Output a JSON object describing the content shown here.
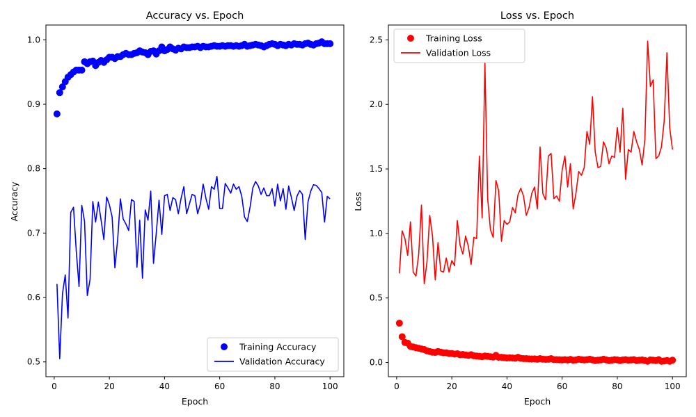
{
  "chart_data": [
    {
      "type": "line",
      "title": "Accuracy vs. Epoch",
      "xlabel": "Epoch",
      "ylabel": "Accuracy",
      "xlim": [
        -3,
        105
      ],
      "ylim": [
        0.477,
        1.023
      ],
      "xticks": [
        0,
        20,
        40,
        60,
        80,
        100
      ],
      "xtick_labels": [
        "0",
        "20",
        "40",
        "60",
        "80",
        "100"
      ],
      "yticks": [
        0.5,
        0.6,
        0.7,
        0.8,
        0.9,
        1.0
      ],
      "ytick_labels": [
        "0.5",
        "0.6",
        "0.7",
        "0.8",
        "0.9",
        "1.0"
      ],
      "grid": false,
      "legend_position": "bottom-right",
      "series": [
        {
          "name": "Training Accuracy",
          "style": "markers",
          "color": "#0000ff",
          "x": [
            1,
            2,
            3,
            4,
            5,
            6,
            7,
            8,
            9,
            10,
            11,
            12,
            13,
            14,
            15,
            16,
            17,
            18,
            19,
            20,
            21,
            22,
            23,
            24,
            25,
            26,
            27,
            28,
            29,
            30,
            31,
            32,
            33,
            34,
            35,
            36,
            37,
            38,
            39,
            40,
            41,
            42,
            43,
            44,
            45,
            46,
            47,
            48,
            49,
            50,
            51,
            52,
            53,
            54,
            55,
            56,
            57,
            58,
            59,
            60,
            61,
            62,
            63,
            64,
            65,
            66,
            67,
            68,
            69,
            70,
            71,
            72,
            73,
            74,
            75,
            76,
            77,
            78,
            79,
            80,
            81,
            82,
            83,
            84,
            85,
            86,
            87,
            88,
            89,
            90,
            91,
            92,
            93,
            94,
            95,
            96,
            97,
            98,
            99,
            100
          ],
          "y": [
            0.885,
            0.918,
            0.927,
            0.935,
            0.942,
            0.946,
            0.95,
            0.953,
            0.953,
            0.953,
            0.966,
            0.963,
            0.966,
            0.967,
            0.96,
            0.965,
            0.968,
            0.965,
            0.969,
            0.973,
            0.973,
            0.971,
            0.974,
            0.974,
            0.977,
            0.979,
            0.977,
            0.977,
            0.979,
            0.98,
            0.983,
            0.981,
            0.98,
            0.977,
            0.982,
            0.983,
            0.978,
            0.983,
            0.989,
            0.983,
            0.985,
            0.989,
            0.986,
            0.984,
            0.987,
            0.986,
            0.989,
            0.988,
            0.988,
            0.989,
            0.989,
            0.99,
            0.988,
            0.99,
            0.989,
            0.989,
            0.99,
            0.991,
            0.99,
            0.99,
            0.991,
            0.99,
            0.991,
            0.991,
            0.99,
            0.991,
            0.99,
            0.991,
            0.993,
            0.99,
            0.991,
            0.992,
            0.993,
            0.992,
            0.991,
            0.989,
            0.991,
            0.993,
            0.994,
            0.993,
            0.991,
            0.993,
            0.992,
            0.991,
            0.993,
            0.992,
            0.994,
            0.993,
            0.993,
            0.992,
            0.994,
            0.995,
            0.993,
            0.992,
            0.994,
            0.995,
            0.997,
            0.994,
            0.994,
            0.994
          ]
        },
        {
          "name": "Validation Accuracy",
          "style": "line",
          "color": "#0000ff",
          "x": [
            1,
            2,
            3,
            4,
            5,
            6,
            7,
            8,
            9,
            10,
            11,
            12,
            13,
            14,
            15,
            16,
            17,
            18,
            19,
            20,
            21,
            22,
            23,
            24,
            25,
            26,
            27,
            28,
            29,
            30,
            31,
            32,
            33,
            34,
            35,
            36,
            37,
            38,
            39,
            40,
            41,
            42,
            43,
            44,
            45,
            46,
            47,
            48,
            49,
            50,
            51,
            52,
            53,
            54,
            55,
            56,
            57,
            58,
            59,
            60,
            61,
            62,
            63,
            64,
            65,
            66,
            67,
            68,
            69,
            70,
            71,
            72,
            73,
            74,
            75,
            76,
            77,
            78,
            79,
            80,
            81,
            82,
            83,
            84,
            85,
            86,
            87,
            88,
            89,
            90,
            91,
            92,
            93,
            94,
            95,
            96,
            97,
            98,
            99,
            100
          ],
          "y": [
            0.621,
            0.505,
            0.606,
            0.635,
            0.568,
            0.732,
            0.74,
            0.672,
            0.617,
            0.743,
            0.718,
            0.603,
            0.628,
            0.749,
            0.717,
            0.748,
            0.72,
            0.69,
            0.756,
            0.744,
            0.725,
            0.646,
            0.69,
            0.753,
            0.722,
            0.714,
            0.704,
            0.752,
            0.749,
            0.647,
            0.72,
            0.63,
            0.736,
            0.72,
            0.765,
            0.653,
            0.7,
            0.751,
            0.698,
            0.758,
            0.76,
            0.735,
            0.755,
            0.752,
            0.73,
            0.754,
            0.772,
            0.73,
            0.745,
            0.76,
            0.758,
            0.73,
            0.745,
            0.776,
            0.754,
            0.737,
            0.772,
            0.768,
            0.788,
            0.738,
            0.738,
            0.777,
            0.77,
            0.762,
            0.776,
            0.768,
            0.772,
            0.757,
            0.725,
            0.718,
            0.74,
            0.77,
            0.78,
            0.773,
            0.76,
            0.77,
            0.758,
            0.758,
            0.769,
            0.742,
            0.776,
            0.75,
            0.769,
            0.737,
            0.773,
            0.755,
            0.735,
            0.757,
            0.766,
            0.76,
            0.69,
            0.748,
            0.765,
            0.775,
            0.774,
            0.769,
            0.763,
            0.717,
            0.757,
            0.753
          ]
        }
      ]
    },
    {
      "type": "line",
      "title": "Loss vs. Epoch",
      "xlabel": "Epoch",
      "ylabel": "Loss",
      "xlim": [
        -3,
        105
      ],
      "ylim": [
        -0.11,
        2.615
      ],
      "xticks": [
        0,
        20,
        40,
        60,
        80,
        100
      ],
      "xtick_labels": [
        "0",
        "20",
        "40",
        "60",
        "80",
        "100"
      ],
      "yticks": [
        0.0,
        0.5,
        1.0,
        1.5,
        2.0,
        2.5
      ],
      "ytick_labels": [
        "0.0",
        "0.5",
        "1.0",
        "1.5",
        "2.0",
        "2.5"
      ],
      "grid": false,
      "legend_position": "top-left",
      "series": [
        {
          "name": "Training Loss",
          "style": "markers",
          "color": "#ff0000",
          "x": [
            1,
            2,
            3,
            4,
            5,
            6,
            7,
            8,
            9,
            10,
            11,
            12,
            13,
            14,
            15,
            16,
            17,
            18,
            19,
            20,
            21,
            22,
            23,
            24,
            25,
            26,
            27,
            28,
            29,
            30,
            31,
            32,
            33,
            34,
            35,
            36,
            37,
            38,
            39,
            40,
            41,
            42,
            43,
            44,
            45,
            46,
            47,
            48,
            49,
            50,
            51,
            52,
            53,
            54,
            55,
            56,
            57,
            58,
            59,
            60,
            61,
            62,
            63,
            64,
            65,
            66,
            67,
            68,
            69,
            70,
            71,
            72,
            73,
            74,
            75,
            76,
            77,
            78,
            79,
            80,
            81,
            82,
            83,
            84,
            85,
            86,
            87,
            88,
            89,
            90,
            91,
            92,
            93,
            94,
            95,
            96,
            97,
            98,
            99,
            100
          ],
          "y": [
            0.305,
            0.2,
            0.155,
            0.15,
            0.125,
            0.12,
            0.115,
            0.11,
            0.105,
            0.1,
            0.09,
            0.085,
            0.08,
            0.078,
            0.085,
            0.08,
            0.075,
            0.075,
            0.07,
            0.07,
            0.065,
            0.068,
            0.06,
            0.062,
            0.058,
            0.055,
            0.06,
            0.052,
            0.05,
            0.048,
            0.045,
            0.05,
            0.048,
            0.045,
            0.042,
            0.055,
            0.04,
            0.04,
            0.038,
            0.035,
            0.036,
            0.035,
            0.033,
            0.04,
            0.032,
            0.03,
            0.03,
            0.028,
            0.027,
            0.028,
            0.025,
            0.03,
            0.026,
            0.024,
            0.025,
            0.03,
            0.022,
            0.022,
            0.021,
            0.02,
            0.022,
            0.019,
            0.024,
            0.018,
            0.02,
            0.025,
            0.022,
            0.02,
            0.022,
            0.025,
            0.02,
            0.015,
            0.018,
            0.02,
            0.025,
            0.02,
            0.015,
            0.018,
            0.022,
            0.02,
            0.015,
            0.02,
            0.022,
            0.018,
            0.02,
            0.022,
            0.015,
            0.018,
            0.02,
            0.015,
            0.01,
            0.02,
            0.018,
            0.015,
            0.022,
            0.01,
            0.012,
            0.015,
            0.01,
            0.018
          ]
        },
        {
          "name": "Validation Loss",
          "style": "line",
          "color": "#ff0000",
          "x": [
            1,
            2,
            3,
            4,
            5,
            6,
            7,
            8,
            9,
            10,
            11,
            12,
            13,
            14,
            15,
            16,
            17,
            18,
            19,
            20,
            21,
            22,
            23,
            24,
            25,
            26,
            27,
            28,
            29,
            30,
            31,
            32,
            33,
            34,
            35,
            36,
            37,
            38,
            39,
            40,
            41,
            42,
            43,
            44,
            45,
            46,
            47,
            48,
            49,
            50,
            51,
            52,
            53,
            54,
            55,
            56,
            57,
            58,
            59,
            60,
            61,
            62,
            63,
            64,
            65,
            66,
            67,
            68,
            69,
            70,
            71,
            72,
            73,
            74,
            75,
            76,
            77,
            78,
            79,
            80,
            81,
            82,
            83,
            84,
            85,
            86,
            87,
            88,
            89,
            90,
            91,
            92,
            93,
            94,
            95,
            96,
            97,
            98,
            99,
            100
          ],
          "y": [
            0.69,
            1.02,
            0.96,
            0.83,
            1.09,
            0.7,
            0.67,
            0.84,
            1.22,
            0.61,
            0.78,
            1.14,
            0.98,
            0.64,
            0.93,
            0.71,
            0.7,
            0.81,
            0.7,
            0.79,
            0.75,
            1.1,
            0.91,
            0.84,
            0.98,
            0.9,
            0.76,
            0.97,
            0.96,
            1.6,
            1.12,
            2.32,
            1.27,
            1.03,
            0.97,
            1.41,
            1.33,
            0.94,
            1.1,
            1.07,
            1.09,
            1.2,
            1.16,
            1.3,
            1.35,
            1.29,
            1.14,
            1.2,
            1.31,
            1.36,
            1.19,
            1.67,
            1.31,
            1.26,
            1.6,
            1.62,
            1.27,
            1.29,
            1.25,
            1.49,
            1.6,
            1.36,
            1.54,
            1.19,
            1.31,
            1.48,
            1.45,
            1.51,
            1.79,
            1.69,
            2.06,
            1.63,
            1.51,
            1.52,
            1.71,
            1.66,
            1.54,
            1.6,
            1.59,
            1.82,
            1.63,
            1.97,
            1.42,
            1.65,
            1.63,
            1.79,
            1.71,
            1.65,
            1.53,
            1.73,
            2.49,
            2.14,
            2.19,
            1.58,
            1.6,
            1.67,
            1.87,
            2.4,
            1.82,
            1.65
          ]
        }
      ]
    }
  ]
}
